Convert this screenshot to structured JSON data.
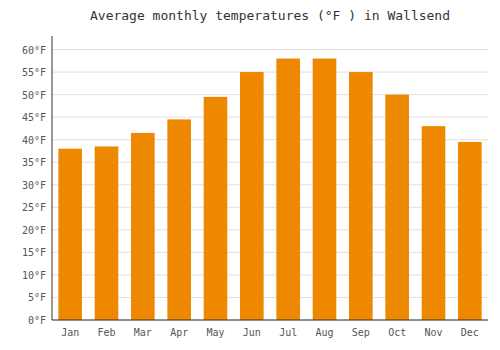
{
  "chart_data": {
    "type": "bar",
    "title": "Average monthly temperatures (°F ) in Wallsend",
    "categories": [
      "Jan",
      "Feb",
      "Mar",
      "Apr",
      "May",
      "Jun",
      "Jul",
      "Aug",
      "Sep",
      "Oct",
      "Nov",
      "Dec"
    ],
    "values": [
      38,
      38.5,
      41.5,
      44.5,
      49.5,
      55,
      58,
      58,
      55,
      50,
      43,
      39.5
    ],
    "color": "#EE8800",
    "ylim": [
      0,
      63
    ],
    "yticks": [
      {
        "value": 0,
        "label": "0°F"
      },
      {
        "value": 5,
        "label": "5°F"
      },
      {
        "value": 10,
        "label": "10°F"
      },
      {
        "value": 15,
        "label": "15°F"
      },
      {
        "value": 20,
        "label": "20°F"
      },
      {
        "value": 25,
        "label": "25°F"
      },
      {
        "value": 30,
        "label": "30°F"
      },
      {
        "value": 35,
        "label": "35°F"
      },
      {
        "value": 40,
        "label": "40°F"
      },
      {
        "value": 45,
        "label": "45°F"
      },
      {
        "value": 50,
        "label": "50°F"
      },
      {
        "value": 55,
        "label": "55°F"
      },
      {
        "value": 60,
        "label": "60°F"
      }
    ],
    "grid": true
  }
}
